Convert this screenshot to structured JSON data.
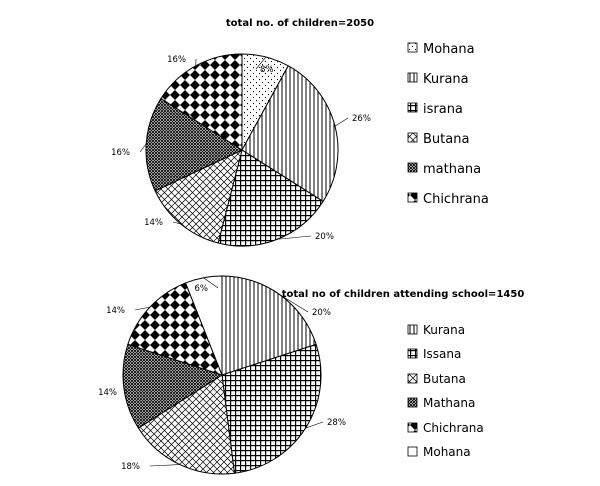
{
  "chart_data": [
    {
      "type": "pie",
      "title": "total no. of children=2050",
      "slices": [
        {
          "label": "Mohana",
          "value": 8,
          "pattern": "dots",
          "value_label": "8%"
        },
        {
          "label": "Kurana",
          "value": 26,
          "pattern": "vlines",
          "value_label": "26%"
        },
        {
          "label": "israna",
          "value": 20,
          "pattern": "grid",
          "value_label": "20%"
        },
        {
          "label": "Butana",
          "value": 14,
          "pattern": "diamond",
          "value_label": "14%"
        },
        {
          "label": "mathana",
          "value": 16,
          "pattern": "dense",
          "value_label": "16%"
        },
        {
          "label": "Chichrana",
          "value": 16,
          "pattern": "checker",
          "value_label": "16%"
        }
      ],
      "legend": [
        {
          "label": "Mohana",
          "pattern": "dots"
        },
        {
          "label": "Kurana",
          "pattern": "vlines"
        },
        {
          "label": "israna",
          "pattern": "grid"
        },
        {
          "label": "Butana",
          "pattern": "diamond"
        },
        {
          "label": "mathana",
          "pattern": "dense"
        },
        {
          "label": "Chichrana",
          "pattern": "checker"
        }
      ]
    },
    {
      "type": "pie",
      "title": "total  no of children attending school=1450",
      "slices": [
        {
          "label": "Kurana",
          "value": 20,
          "pattern": "vlines",
          "value_label": "20%"
        },
        {
          "label": "Issana",
          "value": 28,
          "pattern": "grid",
          "value_label": "28%"
        },
        {
          "label": "Butana",
          "value": 18,
          "pattern": "diamond",
          "value_label": "18%"
        },
        {
          "label": "Mathana",
          "value": 14,
          "pattern": "dense",
          "value_label": "14%"
        },
        {
          "label": "Chichrana",
          "value": 14,
          "pattern": "checker",
          "value_label": "14%"
        },
        {
          "label": "Mohana",
          "value": 6,
          "pattern": "white",
          "value_label": "6%"
        }
      ],
      "legend": [
        {
          "label": "Kurana",
          "pattern": "vlines"
        },
        {
          "label": "Issana",
          "pattern": "grid"
        },
        {
          "label": "Butana",
          "pattern": "diamond"
        },
        {
          "label": "Mathana",
          "pattern": "dense"
        },
        {
          "label": "Chichrana",
          "pattern": "checker"
        },
        {
          "label": "Mohana",
          "pattern": "white"
        }
      ]
    }
  ]
}
